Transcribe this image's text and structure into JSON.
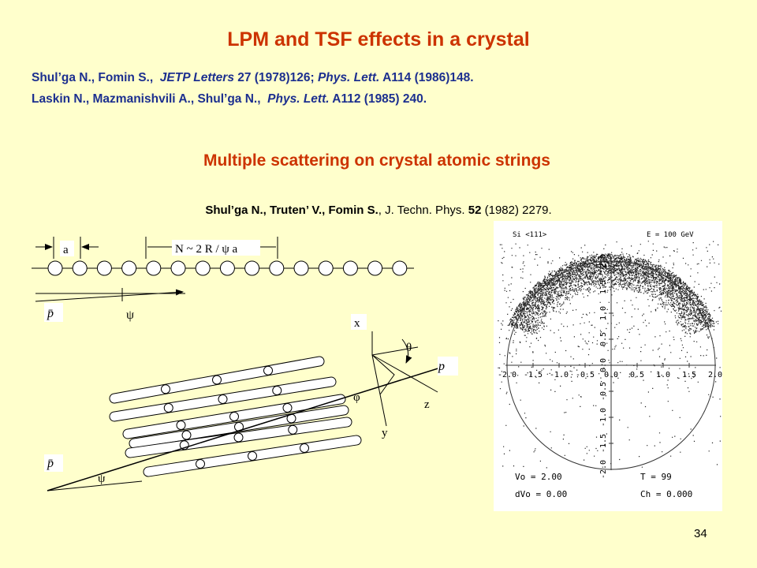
{
  "title": "LPM and TSF effects in a crystal",
  "references": [
    [
      {
        "text": "Shul’ga N., Fomin S.,  "
      },
      {
        "text": "JETP Letters",
        "italic": true
      },
      {
        "text": " 27 (1978)126; "
      },
      {
        "text": "Phys. Lett.",
        "italic": true
      },
      {
        "text": " A114 (1986)148."
      }
    ],
    [
      {
        "text": "Laskin N., Mazmanishvili A., Shul’ga N.,  "
      },
      {
        "text": "Phys. Lett.",
        "italic": true
      },
      {
        "text": " A112 (1985) 240."
      }
    ]
  ],
  "subtitle": "Multiple scattering on crystal atomic strings",
  "citation": [
    {
      "text": "Shul’ga N., Truten’ V., Fomin S.",
      "bold": true
    },
    {
      "text": ", J. Techn. Phys. "
    },
    {
      "text": "52",
      "bold": true
    },
    {
      "text": " (1982) 2279."
    }
  ],
  "diagram_top": {
    "spacing_label": "a",
    "length_label": "N ~ 2 R / ψ a",
    "momentum_label": "p̄",
    "angle_label": "ψ"
  },
  "diagram_bottom": {
    "x_label": "x",
    "theta_label": "θ",
    "momentum_out_label": "p",
    "phi_label": "φ",
    "z_label": "z",
    "y_label": "y",
    "momentum_in_label": "p̄",
    "angle_label": "ψ"
  },
  "scatter": {
    "header_left": "Si <111>",
    "header_right": "E = 100 GeV",
    "x_labels": [
      "-2.0",
      "-1.5",
      "-1.0",
      "-0.5",
      "0.0",
      "0.5",
      "1.0",
      "1.5",
      "2.0"
    ],
    "y_labels": [
      "2.0",
      "1.5",
      "1.0",
      "0.5",
      "0.0",
      "-0.5",
      "-1.0",
      "-1.5",
      "-2.0"
    ],
    "params": [
      "Vo =  2.00",
      "T  =   99",
      "dVo =  0.00",
      "Ch =  0.000"
    ]
  },
  "page_number": "34"
}
